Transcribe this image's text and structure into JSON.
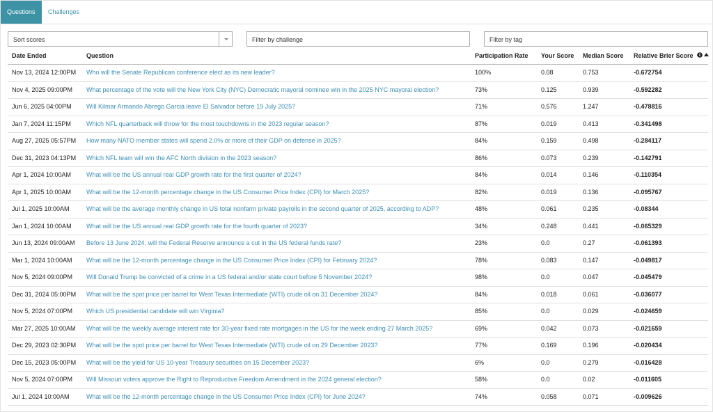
{
  "tabs": [
    "Questions",
    "Challenges"
  ],
  "filters": {
    "sort": "Sort scores",
    "challenge": "Filter by challenge",
    "tag": "Filter by tag"
  },
  "table": {
    "headers": [
      "Date Ended",
      "Question",
      "Participation Rate",
      "Your Score",
      "Median Score",
      "Relative Brier Score"
    ],
    "rows": [
      [
        "Nov 13, 2024 12:00PM",
        "Who will the Senate Republican conference elect as its new leader?",
        "100%",
        "0.08",
        "0.753",
        "-0.672754"
      ],
      [
        "Nov 4, 2025 09:00PM",
        "What percentage of the vote will the New York City (NYC) Democratic mayoral nominee win in the 2025 NYC mayoral election?",
        "73%",
        "0.125",
        "0.939",
        "-0.592282"
      ],
      [
        "Jun 6, 2025 04:00PM",
        "Will Kilmar Armando Abrego Garcia leave El Salvador before 19 July 2025?",
        "71%",
        "0.576",
        "1.247",
        "-0.478816"
      ],
      [
        "Jan 7, 2024 11:15PM",
        "Which NFL quarterback will throw for the most touchdowns in the 2023 regular season?",
        "87%",
        "0.019",
        "0.413",
        "-0.341498"
      ],
      [
        "Aug 27, 2025 05:57PM",
        "How many NATO member states will spend 2.0% or more of their GDP on defense in 2025?",
        "84%",
        "0.159",
        "0.498",
        "-0.284117"
      ],
      [
        "Dec 31, 2023 04:13PM",
        "Which NFL team will win the AFC North division in the 2023 season?",
        "86%",
        "0.073",
        "0.239",
        "-0.142791"
      ],
      [
        "Apr 1, 2024 10:00AM",
        "What will be the US annual real GDP growth rate for the first quarter of 2024?",
        "84%",
        "0.014",
        "0.146",
        "-0.110354"
      ],
      [
        "Apr 1, 2025 10:00AM",
        "What will be the 12-month percentage change in the US Consumer Price Index (CPI) for March 2025?",
        "82%",
        "0.019",
        "0.136",
        "-0.095767"
      ],
      [
        "Jul 1, 2025 10:00AM",
        "What will be the average monthly change in US total nonfarm private payrolls in the second quarter of 2025, according to ADP?",
        "48%",
        "0.061",
        "0.235",
        "-0.08344"
      ],
      [
        "Jan 1, 2024 10:00AM",
        "What will be the US annual real GDP growth rate for the fourth quarter of 2023?",
        "34%",
        "0.248",
        "0.441",
        "-0.065329"
      ],
      [
        "Jun 13, 2024 09:00AM",
        "Before 13 June 2024, will the Federal Reserve announce a cut in the US federal funds rate?",
        "23%",
        "0.0",
        "0.27",
        "-0.061393"
      ],
      [
        "Mar 1, 2024 10:00AM",
        "What will be the 12-month percentage change in the US Consumer Price Index (CPI) for February 2024?",
        "78%",
        "0.083",
        "0.147",
        "-0.049817"
      ],
      [
        "Nov 5, 2024 09:00PM",
        "Will Donald Trump be convicted of a crime in a US federal and/or state court before 5 November 2024?",
        "98%",
        "0.0",
        "0.047",
        "-0.045479"
      ],
      [
        "Dec 31, 2024 05:00PM",
        "What will be the spot price per barrel for West Texas Intermediate (WTI) crude oil on 31 December 2024?",
        "84%",
        "0.018",
        "0.061",
        "-0.036077"
      ],
      [
        "Nov 5, 2024 07:00PM",
        "Which US presidential candidate will win Virginia?",
        "85%",
        "0.0",
        "0.029",
        "-0.024659"
      ],
      [
        "Mar 27, 2025 10:00AM",
        "What will be the weekly average interest rate for 30-year fixed rate mortgages in the US for the week ending 27 March 2025?",
        "69%",
        "0.042",
        "0.073",
        "-0.021659"
      ],
      [
        "Dec 29, 2023 02:30PM",
        "What will be the spot price per barrel for West Texas Intermediate (WTI) crude oil on 29 December 2023?",
        "77%",
        "0.169",
        "0.196",
        "-0.020434"
      ],
      [
        "Dec 15, 2023 05:00PM",
        "What will be the yield for US 10-year Treasury securities on 15 December 2023?",
        "6%",
        "0.0",
        "0.279",
        "-0.016428"
      ],
      [
        "Nov 5, 2024 07:00PM",
        "Will Missouri voters approve the Right to Reproductive Freedom Amendment in the 2024 general election?",
        "58%",
        "0.0",
        "0.02",
        "-0.011605"
      ],
      [
        "Jul 1, 2024 10:00AM",
        "What will be the 12-month percentage change in the US Consumer Price Index (CPI) for June 2024?",
        "74%",
        "0.058",
        "0.071",
        "-0.009626"
      ]
    ]
  }
}
